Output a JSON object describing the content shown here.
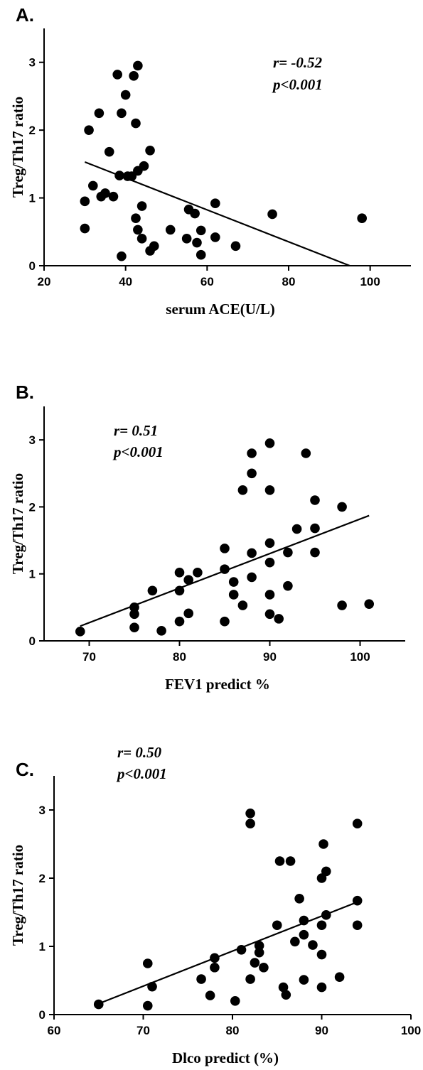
{
  "chart_data": [
    {
      "type": "scatter",
      "panel_label": "A.",
      "title": "",
      "xlabel": "serum ACE(U/L)",
      "ylabel": "Treg/Th17 ratio",
      "xlim": [
        20,
        110
      ],
      "ylim": [
        0,
        3.5
      ],
      "x_ticks": [
        20,
        40,
        60,
        80,
        100
      ],
      "y_ticks": [
        0,
        1,
        2,
        3
      ],
      "grid": false,
      "annotation_lines": [
        "r= -0.52",
        "p<0.001"
      ],
      "annotation_position": "top-right",
      "regression": {
        "x": [
          30,
          95
        ],
        "y": [
          1.53,
          0.0
        ]
      },
      "points": [
        [
          30,
          0.95
        ],
        [
          30,
          0.55
        ],
        [
          31,
          2.0
        ],
        [
          32,
          1.18
        ],
        [
          33.5,
          2.25
        ],
        [
          34,
          1.02
        ],
        [
          35,
          1.07
        ],
        [
          36,
          1.68
        ],
        [
          37,
          1.02
        ],
        [
          38,
          2.82
        ],
        [
          38.5,
          1.33
        ],
        [
          39,
          2.25
        ],
        [
          39,
          0.14
        ],
        [
          40,
          2.52
        ],
        [
          40.5,
          1.32
        ],
        [
          41.5,
          1.32
        ],
        [
          42,
          2.8
        ],
        [
          42.5,
          2.1
        ],
        [
          42.5,
          0.7
        ],
        [
          43,
          2.95
        ],
        [
          43,
          1.4
        ],
        [
          43,
          0.53
        ],
        [
          44,
          0.4
        ],
        [
          44,
          0.88
        ],
        [
          44.5,
          1.47
        ],
        [
          46,
          1.7
        ],
        [
          46,
          0.22
        ],
        [
          47,
          0.29
        ],
        [
          51,
          0.53
        ],
        [
          55,
          0.4
        ],
        [
          55.5,
          0.83
        ],
        [
          57,
          0.77
        ],
        [
          57.5,
          0.34
        ],
        [
          58.5,
          0.52
        ],
        [
          58.5,
          0.16
        ],
        [
          62,
          0.92
        ],
        [
          62,
          0.42
        ],
        [
          67,
          0.29
        ],
        [
          76,
          0.76
        ],
        [
          98,
          0.7
        ]
      ]
    },
    {
      "type": "scatter",
      "panel_label": "B.",
      "title": "",
      "xlabel": "FEV1 predict %",
      "ylabel": "Treg/Th17 ratio",
      "xlim": [
        65,
        105
      ],
      "ylim": [
        0,
        3.5
      ],
      "x_ticks": [
        70,
        80,
        90,
        100
      ],
      "y_ticks": [
        0,
        1,
        2,
        3
      ],
      "grid": false,
      "annotation_lines": [
        "r= 0.51",
        "p<0.001"
      ],
      "annotation_position": "top-left",
      "regression": {
        "x": [
          69,
          101
        ],
        "y": [
          0.22,
          1.87
        ]
      },
      "points": [
        [
          69,
          0.14
        ],
        [
          75,
          0.5
        ],
        [
          75,
          0.4
        ],
        [
          75,
          0.2
        ],
        [
          77,
          0.75
        ],
        [
          78,
          0.15
        ],
        [
          80,
          1.02
        ],
        [
          80,
          0.75
        ],
        [
          80,
          0.29
        ],
        [
          81,
          0.91
        ],
        [
          81,
          0.41
        ],
        [
          82,
          1.02
        ],
        [
          85,
          1.38
        ],
        [
          85,
          1.07
        ],
        [
          85,
          0.29
        ],
        [
          86,
          0.88
        ],
        [
          86,
          0.69
        ],
        [
          87,
          2.25
        ],
        [
          87,
          0.53
        ],
        [
          88,
          2.8
        ],
        [
          88,
          2.5
        ],
        [
          88,
          1.31
        ],
        [
          88,
          0.95
        ],
        [
          90,
          2.95
        ],
        [
          90,
          2.25
        ],
        [
          90,
          1.46
        ],
        [
          90,
          1.17
        ],
        [
          90,
          0.69
        ],
        [
          90,
          0.4
        ],
        [
          91,
          0.33
        ],
        [
          92,
          1.32
        ],
        [
          92,
          0.82
        ],
        [
          93,
          1.67
        ],
        [
          94,
          2.8
        ],
        [
          95,
          2.1
        ],
        [
          95,
          1.68
        ],
        [
          95,
          1.32
        ],
        [
          98,
          2.0
        ],
        [
          98,
          0.53
        ],
        [
          101,
          0.55
        ]
      ]
    },
    {
      "type": "scatter",
      "panel_label": "C.",
      "title": "",
      "xlabel": "Dlco predict (%)",
      "ylabel": "Treg/Th17 ratio",
      "xlim": [
        60,
        100
      ],
      "ylim": [
        0,
        3.5
      ],
      "x_ticks": [
        60,
        70,
        80,
        90,
        100
      ],
      "y_ticks": [
        0,
        1,
        2,
        3
      ],
      "grid": false,
      "annotation_lines": [
        "r= 0.50",
        "p<0.001"
      ],
      "annotation_position": "top-left",
      "regression": {
        "x": [
          65,
          94
        ],
        "y": [
          0.16,
          1.65
        ]
      },
      "points": [
        [
          65,
          0.15
        ],
        [
          70.5,
          0.75
        ],
        [
          70.5,
          0.13
        ],
        [
          71,
          0.41
        ],
        [
          76.5,
          0.52
        ],
        [
          77.5,
          0.28
        ],
        [
          78,
          0.83
        ],
        [
          78,
          0.69
        ],
        [
          80.3,
          0.2
        ],
        [
          81,
          0.95
        ],
        [
          82,
          2.95
        ],
        [
          82,
          2.8
        ],
        [
          82,
          0.52
        ],
        [
          82.5,
          0.76
        ],
        [
          83,
          1.01
        ],
        [
          83,
          0.91
        ],
        [
          83.5,
          0.69
        ],
        [
          85,
          1.31
        ],
        [
          85.3,
          2.25
        ],
        [
          85.7,
          0.4
        ],
        [
          86,
          0.29
        ],
        [
          86.5,
          2.25
        ],
        [
          87,
          1.07
        ],
        [
          87.5,
          1.7
        ],
        [
          88,
          1.38
        ],
        [
          88,
          1.17
        ],
        [
          88,
          0.51
        ],
        [
          89,
          1.02
        ],
        [
          90,
          2.0
        ],
        [
          90,
          1.31
        ],
        [
          90,
          0.88
        ],
        [
          90,
          0.4
        ],
        [
          90.2,
          2.5
        ],
        [
          90.5,
          2.1
        ],
        [
          90.5,
          1.46
        ],
        [
          92,
          0.55
        ],
        [
          94,
          2.8
        ],
        [
          94,
          1.67
        ],
        [
          94,
          1.31
        ]
      ]
    }
  ]
}
